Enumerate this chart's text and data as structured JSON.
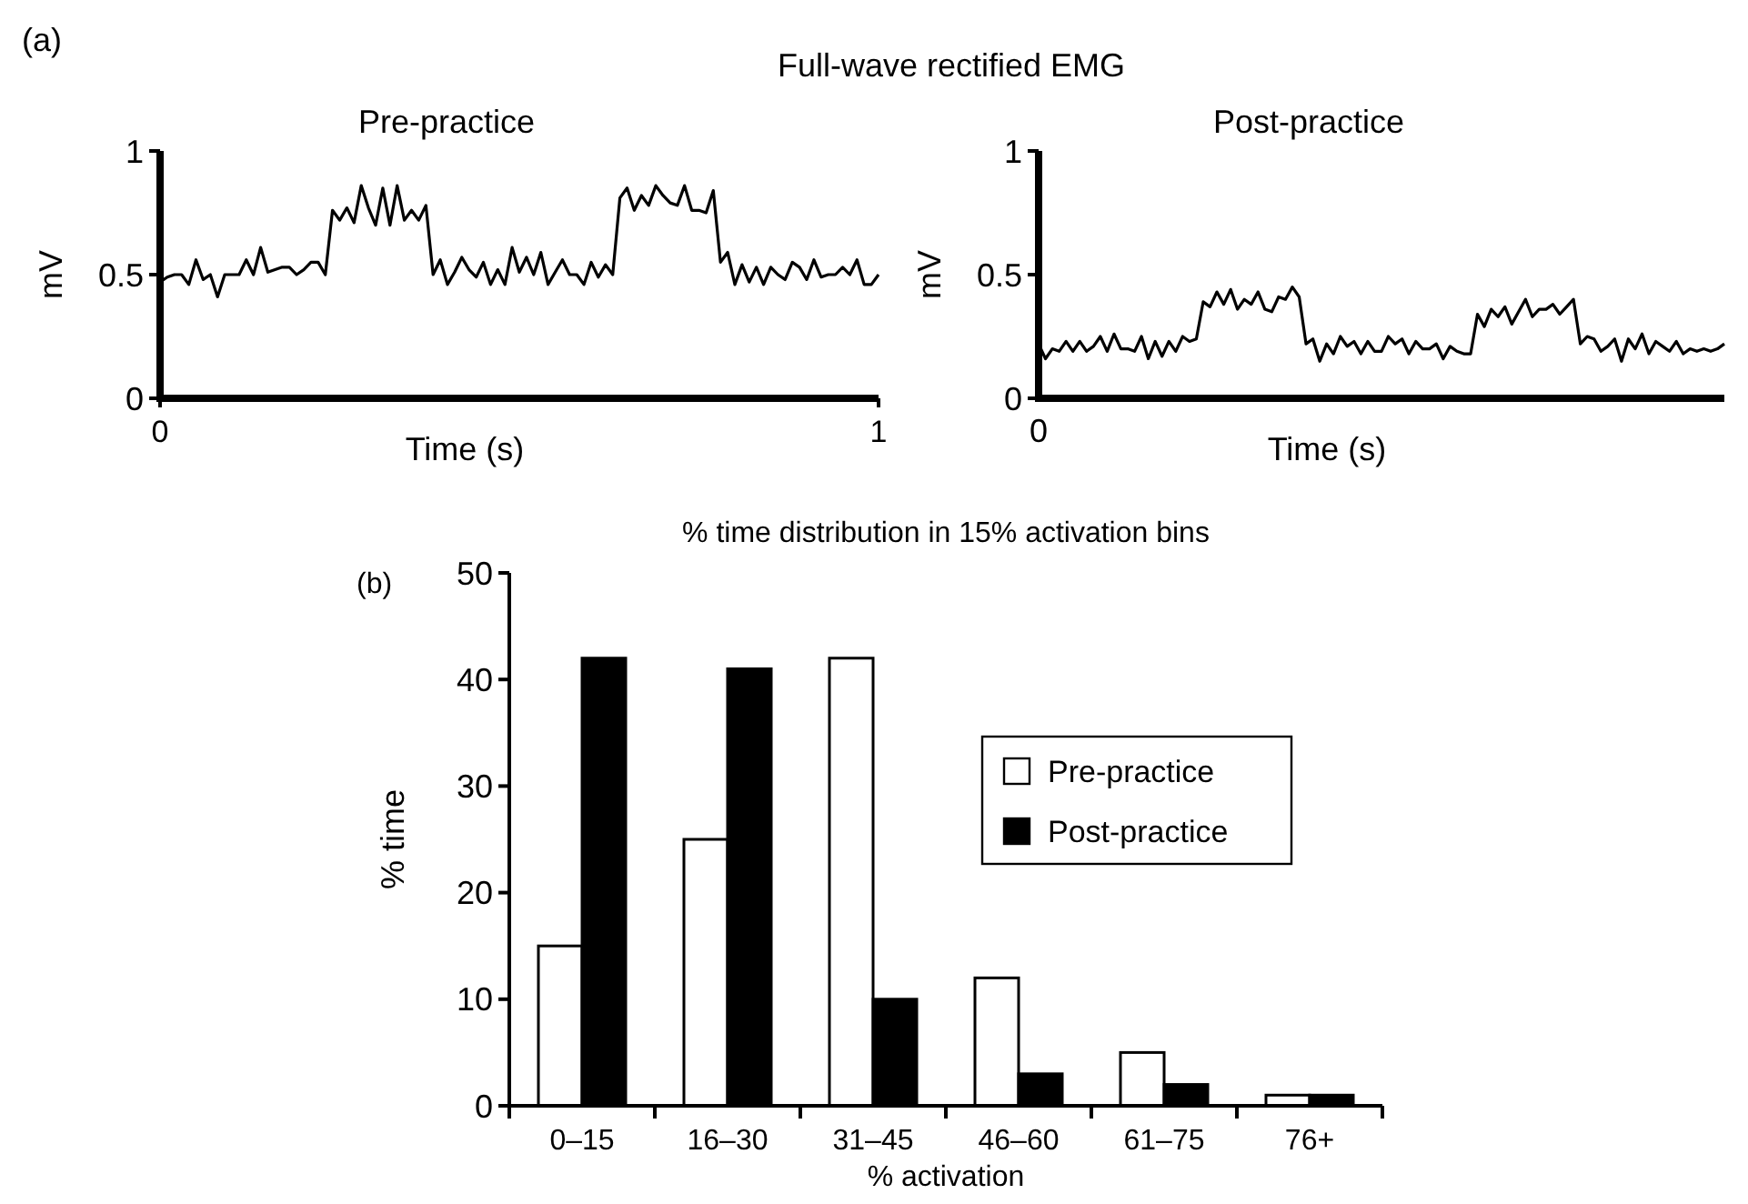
{
  "chart_data": [
    {
      "type": "line",
      "title": "Pre-practice",
      "xlabel": "Time (s)",
      "ylabel": "mV",
      "annotations": [
        "(a)",
        "Full-wave rectified EMG"
      ],
      "x": [
        0,
        0.01,
        0.02,
        0.03,
        0.04,
        0.05,
        0.06,
        0.07,
        0.08,
        0.09,
        0.1,
        0.11,
        0.12,
        0.13,
        0.14,
        0.15,
        0.16,
        0.17,
        0.18,
        0.19,
        0.2,
        0.21,
        0.22,
        0.23,
        0.24,
        0.25,
        0.26,
        0.27,
        0.28,
        0.29,
        0.3,
        0.31,
        0.32,
        0.33,
        0.34,
        0.35,
        0.36,
        0.37,
        0.38,
        0.39,
        0.4,
        0.41,
        0.42,
        0.43,
        0.44,
        0.45,
        0.46,
        0.47,
        0.48,
        0.49,
        0.5,
        0.51,
        0.52,
        0.53,
        0.54,
        0.55,
        0.56,
        0.57,
        0.58,
        0.59,
        0.6,
        0.61,
        0.62,
        0.63,
        0.64,
        0.65,
        0.66,
        0.67,
        0.68,
        0.69,
        0.7,
        0.71,
        0.72,
        0.73,
        0.74,
        0.75,
        0.76,
        0.77,
        0.78,
        0.79,
        0.8,
        0.81,
        0.82,
        0.83,
        0.84,
        0.85,
        0.86,
        0.87,
        0.88,
        0.89,
        0.9,
        0.91,
        0.92,
        0.93,
        0.94,
        0.95,
        0.96,
        0.97,
        0.98,
        0.99,
        1
      ],
      "series": [
        {
          "color": "#000000",
          "values": [
            0.47,
            0.49,
            0.5,
            0.5,
            0.46,
            0.56,
            0.48,
            0.5,
            0.41,
            0.5,
            0.5,
            0.5,
            0.56,
            0.5,
            0.61,
            0.51,
            0.52,
            0.53,
            0.53,
            0.5,
            0.52,
            0.55,
            0.55,
            0.5,
            0.76,
            0.72,
            0.77,
            0.71,
            0.86,
            0.77,
            0.7,
            0.85,
            0.7,
            0.86,
            0.72,
            0.76,
            0.72,
            0.78,
            0.5,
            0.56,
            0.46,
            0.51,
            0.57,
            0.52,
            0.49,
            0.55,
            0.46,
            0.52,
            0.46,
            0.61,
            0.51,
            0.57,
            0.5,
            0.59,
            0.46,
            0.51,
            0.56,
            0.5,
            0.5,
            0.46,
            0.55,
            0.49,
            0.54,
            0.5,
            0.81,
            0.85,
            0.76,
            0.82,
            0.78,
            0.86,
            0.82,
            0.79,
            0.78,
            0.86,
            0.76,
            0.76,
            0.75,
            0.84,
            0.55,
            0.59,
            0.46,
            0.54,
            0.47,
            0.53,
            0.46,
            0.53,
            0.5,
            0.48,
            0.55,
            0.53,
            0.48,
            0.56,
            0.49,
            0.5,
            0.5,
            0.53,
            0.5,
            0.56,
            0.46,
            0.46,
            0.5
          ]
        }
      ],
      "xlim": [
        0,
        1
      ],
      "xticks": [
        0,
        1
      ],
      "ylim": [
        0,
        1
      ],
      "yticks": [
        0,
        0.5,
        1
      ],
      "grid": false,
      "marker": "none",
      "line_style": "solid"
    },
    {
      "type": "line",
      "title": "Post-practice",
      "xlabel": "Time (s)",
      "ylabel": "mV",
      "annotations": [
        "0"
      ],
      "categories": [
        null,
        null,
        null,
        null,
        null,
        null,
        null,
        null,
        null,
        null,
        null,
        null,
        null,
        null,
        null,
        null,
        null,
        null,
        null,
        null,
        null,
        null,
        null,
        null,
        null,
        null,
        null,
        null,
        null,
        null,
        null,
        null,
        null,
        null,
        null,
        null,
        null,
        null,
        null,
        null,
        null,
        null,
        null,
        null,
        null,
        null,
        null,
        null,
        null,
        null,
        null,
        null,
        null,
        null,
        null,
        null,
        null,
        null,
        null,
        null,
        null,
        null,
        null,
        null,
        null,
        null,
        null,
        null,
        null,
        null,
        null,
        null,
        null,
        null,
        null,
        null,
        null,
        null,
        null,
        null,
        null,
        null,
        null,
        null,
        null,
        null,
        null,
        null,
        null,
        null,
        null,
        null,
        null,
        null,
        null,
        null,
        null,
        null,
        null,
        null,
        null
      ],
      "series": [
        {
          "color": "#000000",
          "values": [
            0.22,
            0.16,
            0.2,
            0.19,
            0.23,
            0.19,
            0.23,
            0.19,
            0.21,
            0.25,
            0.19,
            0.26,
            0.2,
            0.2,
            0.19,
            0.25,
            0.16,
            0.23,
            0.17,
            0.23,
            0.19,
            0.25,
            0.23,
            0.24,
            0.39,
            0.37,
            0.43,
            0.38,
            0.44,
            0.36,
            0.4,
            0.38,
            0.43,
            0.36,
            0.35,
            0.41,
            0.4,
            0.45,
            0.41,
            0.22,
            0.24,
            0.15,
            0.22,
            0.18,
            0.25,
            0.21,
            0.23,
            0.18,
            0.23,
            0.19,
            0.19,
            0.25,
            0.22,
            0.24,
            0.18,
            0.23,
            0.2,
            0.2,
            0.22,
            0.16,
            0.21,
            0.19,
            0.18,
            0.18,
            0.34,
            0.29,
            0.36,
            0.33,
            0.37,
            0.3,
            0.35,
            0.4,
            0.33,
            0.36,
            0.36,
            0.38,
            0.34,
            0.37,
            0.4,
            0.22,
            0.25,
            0.24,
            0.19,
            0.21,
            0.24,
            0.15,
            0.24,
            0.2,
            0.26,
            0.18,
            0.23,
            0.21,
            0.19,
            0.23,
            0.18,
            0.2,
            0.19,
            0.2,
            0.19,
            0.2,
            0.22
          ]
        }
      ],
      "ylim": [
        0,
        1
      ],
      "yticks": [
        0,
        0.5,
        1
      ],
      "grid": false,
      "marker": "none",
      "line_style": "solid"
    },
    {
      "type": "bar",
      "title": "% time distribution in 15% activation bins",
      "xlabel": "% activation",
      "ylabel": "% time",
      "annotations": [
        "(b)"
      ],
      "categories": [
        "0–15",
        "16–30",
        "31–45",
        "46–60",
        "61–75",
        "76+"
      ],
      "series": [
        {
          "name": "Pre-practice",
          "color": "#ffffff",
          "values": [
            15,
            25,
            42,
            12,
            5,
            1
          ]
        },
        {
          "name": "Post-practice",
          "color": "#000000",
          "values": [
            42,
            41,
            10,
            3,
            2,
            1
          ]
        }
      ],
      "ylim": [
        0,
        50
      ],
      "yticks": [
        0,
        10,
        20,
        30,
        40,
        50
      ],
      "grid": false,
      "legend": "right"
    }
  ]
}
